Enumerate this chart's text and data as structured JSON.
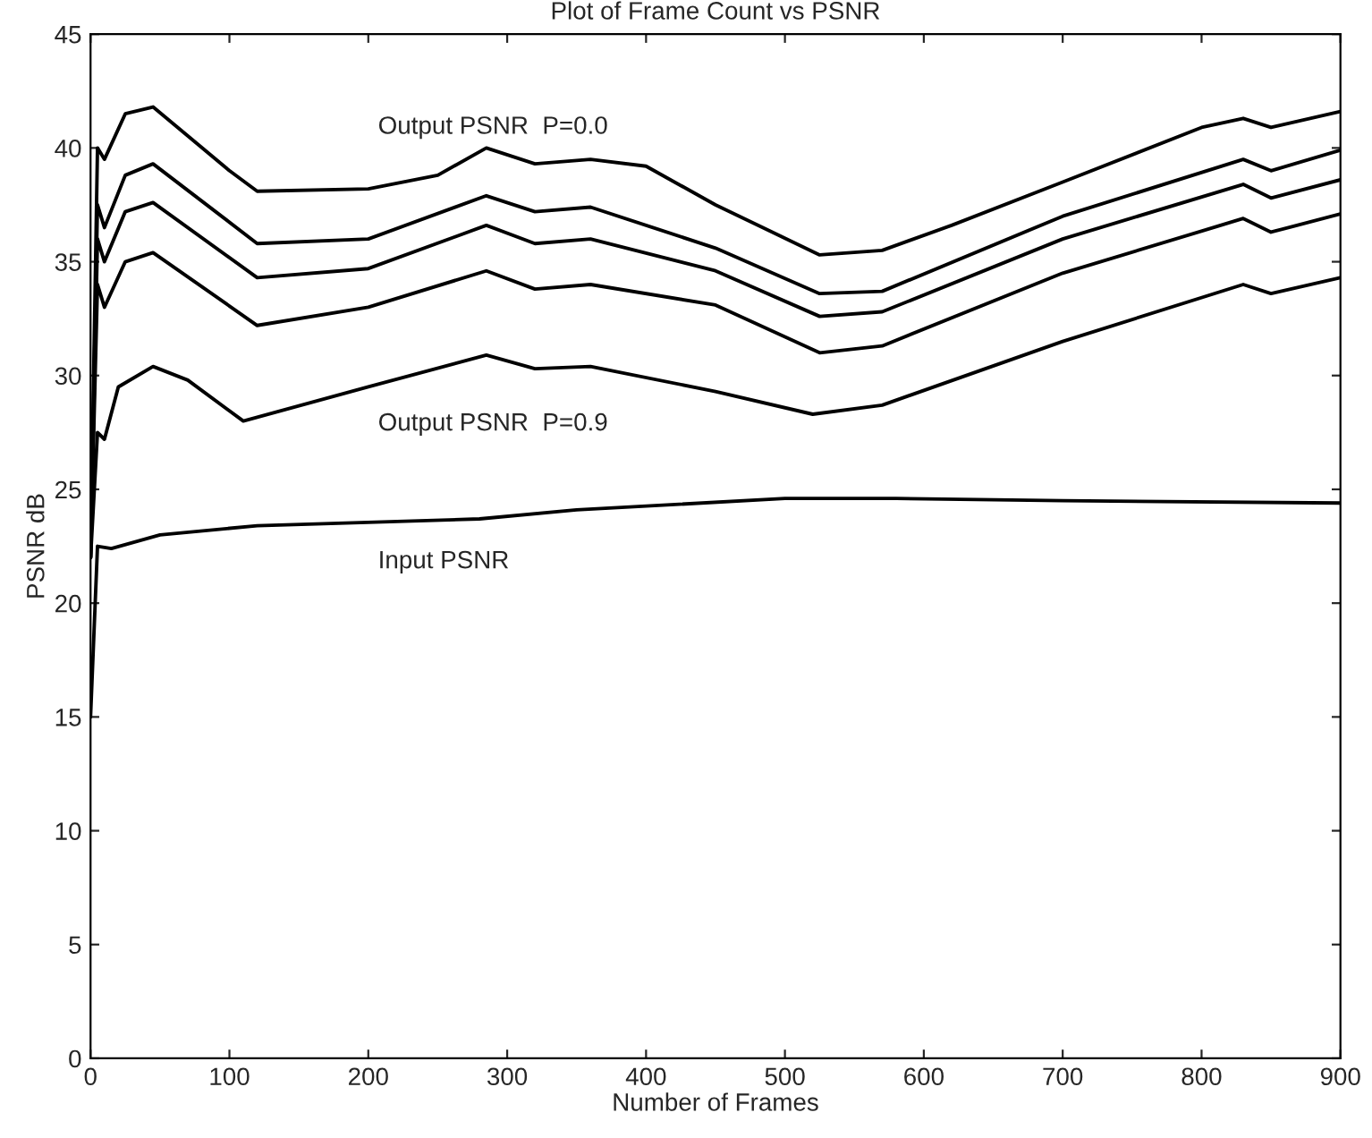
{
  "chart_data": {
    "type": "line",
    "title": "Plot of Frame Count vs PSNR",
    "xlabel": "Number of Frames",
    "ylabel": "PSNR dB",
    "xlim": [
      0,
      900
    ],
    "ylim": [
      0,
      45
    ],
    "xticks": [
      0,
      100,
      200,
      300,
      400,
      500,
      600,
      700,
      800,
      900
    ],
    "yticks": [
      0,
      5,
      10,
      15,
      20,
      25,
      30,
      35,
      40,
      45
    ],
    "grid": false,
    "line_style": "solid",
    "marker": "none",
    "series": [
      {
        "name": "Output PSNR  P=0.0",
        "color": "#000000",
        "x": [
          0,
          5,
          10,
          25,
          45,
          100,
          120,
          200,
          250,
          285,
          320,
          360,
          400,
          450,
          525,
          570,
          620,
          700,
          800,
          830,
          850,
          900
        ],
        "values": [
          22,
          40.0,
          39.5,
          41.5,
          41.8,
          39,
          38.1,
          38.2,
          38.8,
          40.0,
          39.3,
          39.5,
          39.2,
          37.5,
          35.3,
          35.5,
          36.6,
          38.5,
          40.9,
          41.3,
          40.9,
          41.6
        ]
      },
      {
        "color": "#000000",
        "x": [
          0,
          5,
          10,
          25,
          45,
          120,
          200,
          285,
          320,
          360,
          450,
          525,
          570,
          700,
          830,
          850,
          900
        ],
        "values": [
          22,
          37.5,
          36.5,
          38.8,
          39.3,
          35.8,
          36,
          37.9,
          37.2,
          37.4,
          35.6,
          33.6,
          33.7,
          37,
          39.5,
          39,
          39.9
        ]
      },
      {
        "color": "#000000",
        "x": [
          0,
          5,
          10,
          25,
          45,
          120,
          200,
          285,
          320,
          360,
          450,
          525,
          570,
          700,
          830,
          850,
          900
        ],
        "values": [
          22,
          36,
          35,
          37.2,
          37.6,
          34.3,
          34.7,
          36.6,
          35.8,
          36.0,
          34.6,
          32.6,
          32.8,
          36,
          38.4,
          37.8,
          38.6
        ]
      },
      {
        "color": "#000000",
        "x": [
          0,
          5,
          10,
          25,
          45,
          120,
          200,
          285,
          320,
          360,
          450,
          525,
          570,
          700,
          830,
          850,
          900
        ],
        "values": [
          22,
          34,
          33,
          35,
          35.4,
          32.2,
          33,
          34.6,
          33.8,
          34.0,
          33.1,
          31.0,
          31.3,
          34.5,
          36.9,
          36.3,
          37.1
        ]
      },
      {
        "name": "Output PSNR  P=0.9",
        "color": "#000000",
        "x": [
          0,
          5,
          10,
          20,
          45,
          70,
          110,
          200,
          285,
          320,
          360,
          450,
          520,
          570,
          700,
          830,
          850,
          900
        ],
        "values": [
          22,
          27.5,
          27.2,
          29.5,
          30.4,
          29.8,
          28,
          29.5,
          30.9,
          30.3,
          30.4,
          29.3,
          28.3,
          28.7,
          31.5,
          34,
          33.6,
          34.3
        ]
      },
      {
        "name": "Input PSNR",
        "color": "#000000",
        "x": [
          0,
          5,
          15,
          50,
          120,
          280,
          350,
          500,
          580,
          700,
          900
        ],
        "values": [
          15,
          22.5,
          22.4,
          23,
          23.4,
          23.7,
          24.1,
          24.6,
          24.6,
          24.5,
          24.4
        ]
      }
    ]
  }
}
